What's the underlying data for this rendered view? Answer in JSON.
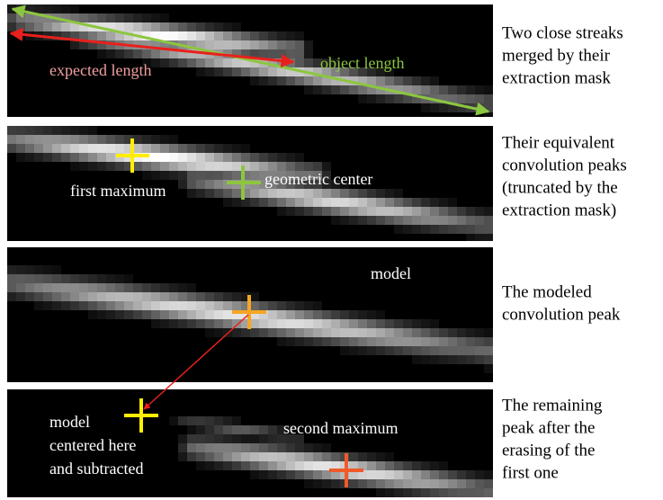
{
  "panels": [
    {
      "labels": [
        "expected length",
        "object length"
      ],
      "caption": [
        "Two close streaks",
        "merged by their",
        "extraction mask"
      ]
    },
    {
      "labels": [
        "first maximum",
        "geometric center"
      ],
      "caption": [
        "Their equivalent",
        "convolution peaks",
        "(truncated by the",
        "extraction mask)"
      ]
    },
    {
      "labels": [
        "model"
      ],
      "caption": [
        "The modeled",
        "convolution peak"
      ]
    },
    {
      "labels": [
        "model",
        "centered here",
        "and subtracted",
        "second  maximum"
      ],
      "caption": [
        "The remaining",
        "peak after the",
        "erasing of the",
        "first one"
      ]
    }
  ]
}
